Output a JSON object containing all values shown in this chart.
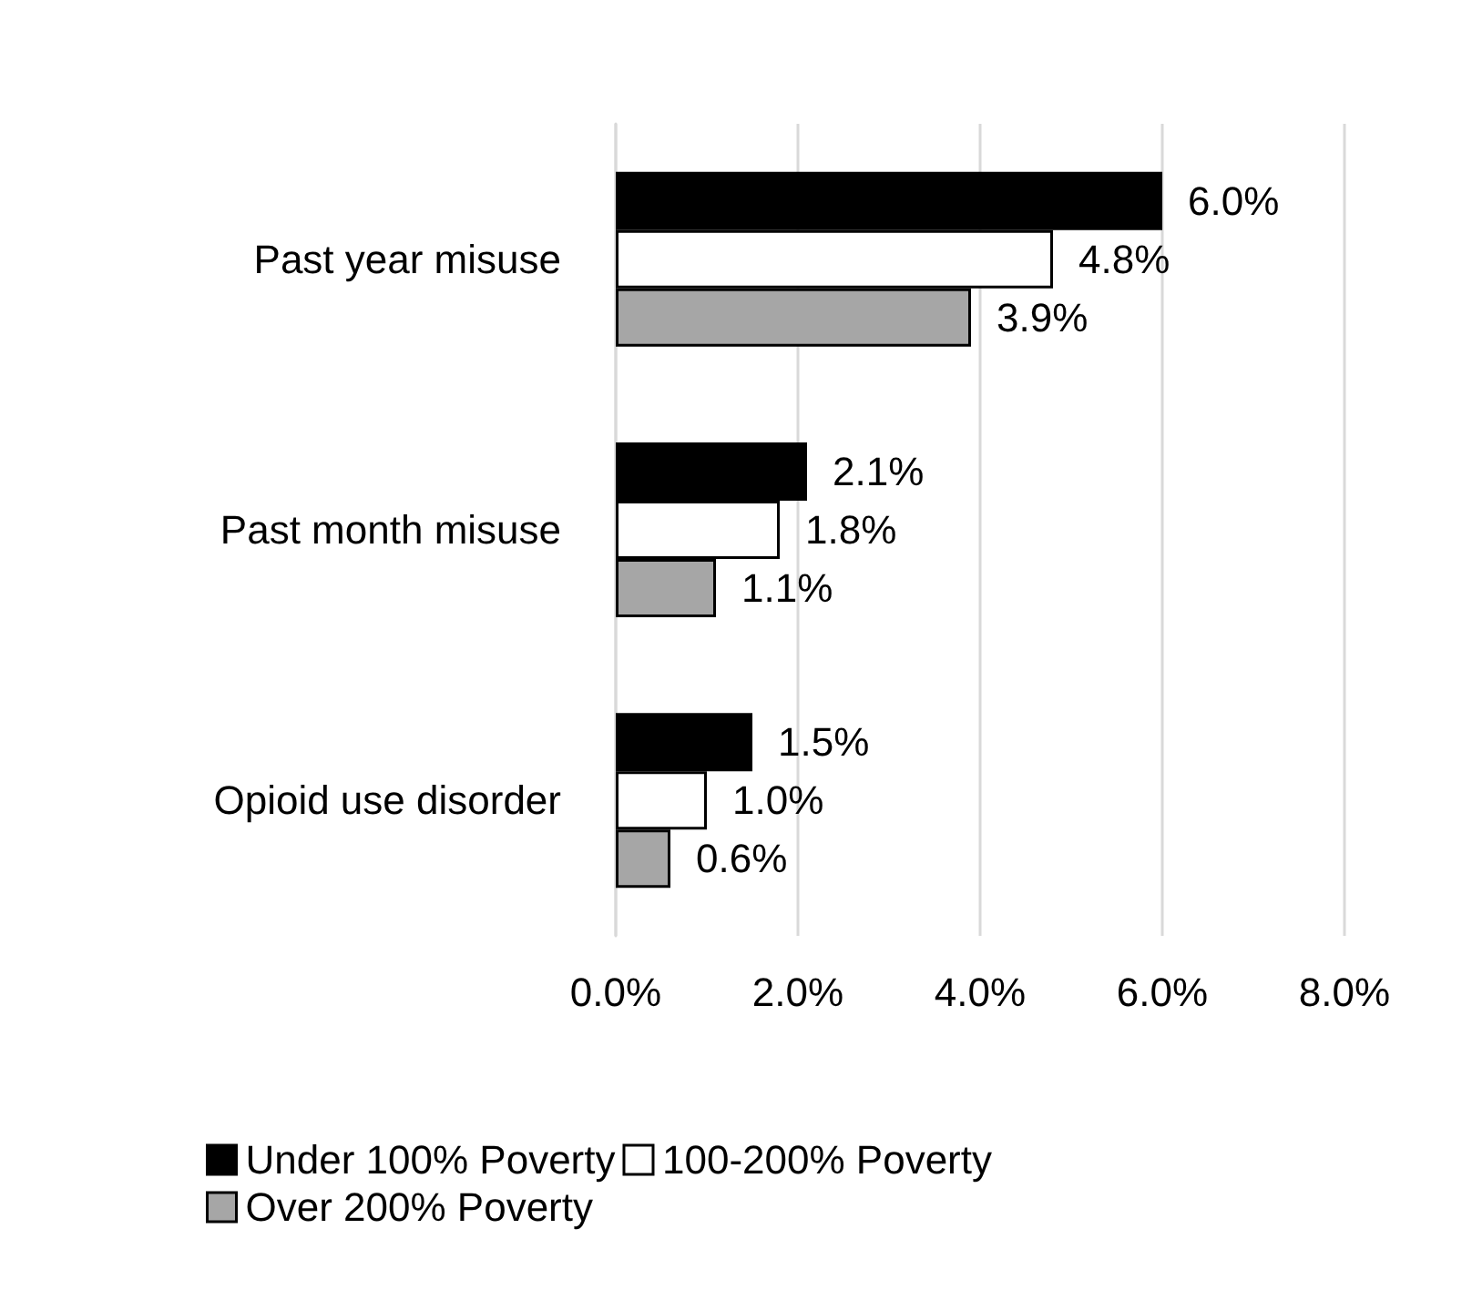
{
  "chart_data": {
    "type": "bar",
    "orientation": "horizontal",
    "categories": [
      "Past year misuse",
      "Past month misuse",
      "Opioid use disorder"
    ],
    "series": [
      {
        "name": "Under 100% Poverty",
        "color": "#000000",
        "values": [
          6.0,
          2.1,
          1.5
        ],
        "value_labels": [
          "6.0%",
          "2.1%",
          "1.5%"
        ]
      },
      {
        "name": "100-200% Poverty",
        "color": "#ffffff",
        "values": [
          4.8,
          1.8,
          1.0
        ],
        "value_labels": [
          "4.8%",
          "1.8%",
          "1.0%"
        ]
      },
      {
        "name": "Over 200% Poverty",
        "color": "#a6a6a6",
        "values": [
          3.9,
          1.1,
          0.6
        ],
        "value_labels": [
          "3.9%",
          "1.1%",
          "0.6%"
        ]
      }
    ],
    "xlim": [
      0,
      8
    ],
    "xticks": [
      {
        "value": 0,
        "label": "0.0%"
      },
      {
        "value": 2,
        "label": "2.0%"
      },
      {
        "value": 4,
        "label": "4.0%"
      },
      {
        "value": 6,
        "label": "6.0%"
      },
      {
        "value": 8,
        "label": "8.0%"
      }
    ],
    "grid": "x",
    "legend": "bottom"
  }
}
